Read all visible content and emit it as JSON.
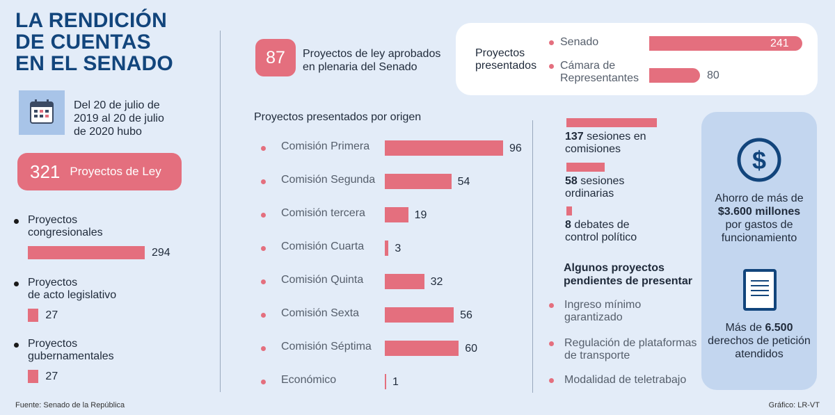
{
  "title_lines": [
    "LA RENDICIÓN",
    "DE CUENTAS",
    "EN EL SENADO"
  ],
  "intro": "Del 20 de julio de 2019 al 20 de julio de 2020 hubo",
  "total": {
    "value": "321",
    "label": "Proyectos de Ley"
  },
  "approved": {
    "value": "87",
    "label_lines": [
      "Proyectos de ley aprobados",
      "en plenaria del Senado"
    ]
  },
  "presented_card": {
    "label_lines": [
      "Proyectos",
      "presentados"
    ],
    "rows": [
      {
        "label_lines": [
          "Senado"
        ],
        "value": "241"
      },
      {
        "label_lines": [
          "Cámara de",
          "Representantes"
        ],
        "value": "80"
      }
    ]
  },
  "by_origin_title": "Proyectos presentados por origen",
  "footer": {
    "source": "Fuente: Senado de la República",
    "credit": "Gráfico: LR-VT"
  },
  "pending": {
    "title_lines": [
      "Algunos proyectos",
      "pendientes de presentar"
    ],
    "items": [
      [
        "Ingreso mínimo",
        "garantizado"
      ],
      [
        "Regulación de plataformas",
        "de transporte"
      ],
      [
        "Modalidad de teletrabajo"
      ]
    ]
  },
  "savings": {
    "pre": "Ahorro de más de",
    "bold": "$3.600 millones",
    "post_lines": [
      "por gastos de",
      "funcionamiento"
    ]
  },
  "petitions": {
    "pre": "Más de ",
    "bold": "6.500",
    "post_lines": [
      "derechos de petición",
      "atendidos"
    ]
  },
  "colors": {
    "accent": "#e46f7e",
    "title": "#12457c",
    "background": "#e3ecf8",
    "panel": "#c3d6ef"
  },
  "icons": [
    "calendar-icon",
    "dollar-icon",
    "document-icon"
  ],
  "chart_data": [
    {
      "type": "bar",
      "orientation": "horizontal",
      "categories": [
        [
          "Proyectos",
          "congresionales"
        ],
        [
          "Proyectos",
          "de acto legislativo"
        ],
        [
          "Proyectos",
          "gubernamentales"
        ]
      ],
      "values": [
        294,
        27,
        27
      ]
    },
    {
      "type": "bar",
      "orientation": "horizontal",
      "categories": [
        "Senado",
        "Cámara de Representantes"
      ],
      "values": [
        241,
        80
      ]
    },
    {
      "type": "bar",
      "orientation": "horizontal",
      "title": "Proyectos presentados por origen",
      "categories": [
        "Comisión Primera",
        "Comisión Segunda",
        "Comisión tercera",
        "Comisión Cuarta",
        "Comisión Quinta",
        "Comisión Sexta",
        "Comisión Séptima",
        "Económico"
      ],
      "values": [
        96,
        54,
        19,
        3,
        32,
        56,
        60,
        1
      ]
    },
    {
      "type": "bar",
      "orientation": "horizontal",
      "categories": [
        {
          "bold": "137",
          "rest": " sesiones en",
          "line2": "comisiones"
        },
        {
          "bold": "58",
          "rest": " sesiones",
          "line2": "ordinarias"
        },
        {
          "bold": "8",
          "rest": " debates de",
          "line2": "control político"
        }
      ],
      "values": [
        137,
        58,
        8
      ]
    }
  ]
}
